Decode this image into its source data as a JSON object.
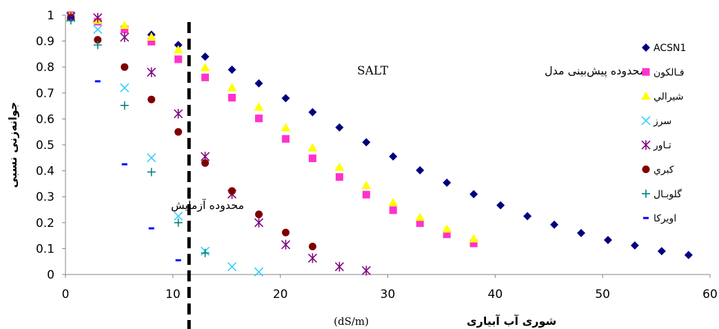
{
  "chart_data": {
    "type": "scatter",
    "title": "",
    "xlabel": "شوری آب آبیاری",
    "xunit": "(dS/m)",
    "ylabel": "جوانه‌زنی نسبی",
    "xlim": [
      0,
      60
    ],
    "ylim": [
      0,
      1
    ],
    "x_ticks": [
      0,
      10,
      20,
      30,
      40,
      50,
      60
    ],
    "y_ticks": [
      0,
      0.1,
      0.2,
      0.3,
      0.4,
      0.5,
      0.6,
      0.7,
      0.8,
      0.9,
      1
    ],
    "grid": false,
    "legend_position": "right",
    "divider_x": 11.5,
    "annotations": {
      "model_range": "محدوده پیش‌بینی مدل",
      "model_name": "SALT",
      "experiment_range": "محدوده آزمایش"
    },
    "series": [
      {
        "name": "ACSN1",
        "marker": "diamond",
        "color": "#000080",
        "x": [
          0.5,
          3,
          5.5,
          8,
          10.5,
          13,
          15.5,
          18,
          20.5,
          23,
          25.5,
          28,
          30.5,
          33,
          35.5,
          38,
          40.5,
          43,
          45.5,
          48,
          50.5,
          53,
          55.5,
          58
        ],
        "y": [
          0.99,
          0.98,
          0.955,
          0.925,
          0.885,
          0.84,
          0.79,
          0.737,
          0.68,
          0.626,
          0.567,
          0.51,
          0.455,
          0.402,
          0.354,
          0.31,
          0.267,
          0.225,
          0.192,
          0.16,
          0.133,
          0.112,
          0.09,
          0.075
        ]
      },
      {
        "name": "فـالکون",
        "marker": "square",
        "color": "#ff33cc",
        "x": [
          0.5,
          3,
          5.5,
          8,
          10.5,
          13,
          15.5,
          18,
          20.5,
          23,
          25.5,
          28,
          30.5,
          33,
          35.5,
          38
        ],
        "y": [
          1.0,
          0.975,
          0.945,
          0.898,
          0.83,
          0.76,
          0.682,
          0.602,
          0.523,
          0.448,
          0.376,
          0.308,
          0.248,
          0.198,
          0.155,
          0.12
        ]
      },
      {
        "name": "شيرالي",
        "marker": "triangle",
        "color": "#ffff00",
        "x": [
          0.5,
          3,
          5.5,
          8,
          10.5,
          13,
          15.5,
          18,
          20.5,
          23,
          25.5,
          28,
          30.5,
          33,
          35.5,
          38
        ],
        "y": [
          1.0,
          0.98,
          0.96,
          0.915,
          0.866,
          0.797,
          0.72,
          0.645,
          0.565,
          0.488,
          0.413,
          0.343,
          0.277,
          0.22,
          0.175,
          0.137
        ]
      },
      {
        "name": "سرز",
        "marker": "x",
        "color": "#33ccff",
        "x": [
          0.5,
          3,
          5.5,
          8,
          10.5,
          13,
          15.5,
          18
        ],
        "y": [
          0.99,
          0.945,
          0.72,
          0.45,
          0.225,
          0.09,
          0.03,
          0.01
        ]
      },
      {
        "name": "تـاور",
        "marker": "asterisk",
        "color": "#800080",
        "x": [
          0.5,
          3,
          5.5,
          8,
          10.5,
          13,
          15.5,
          18,
          20.5,
          23,
          25.5,
          28
        ],
        "y": [
          0.995,
          0.99,
          0.915,
          0.78,
          0.62,
          0.455,
          0.31,
          0.2,
          0.115,
          0.063,
          0.03,
          0.015
        ]
      },
      {
        "name": "كبري",
        "marker": "circle",
        "color": "#800000",
        "x": [
          0.5,
          3,
          5.5,
          8,
          10.5,
          13,
          15.5,
          18,
          20.5,
          23
        ],
        "y": [
          0.99,
          0.905,
          0.8,
          0.675,
          0.55,
          0.43,
          0.322,
          0.232,
          0.162,
          0.108
        ]
      },
      {
        "name": "گلوبـال",
        "marker": "plus",
        "color": "#008080",
        "x": [
          0.5,
          3,
          5.5,
          8,
          10.5,
          13
        ],
        "y": [
          0.98,
          0.885,
          0.652,
          0.395,
          0.2,
          0.083
        ]
      },
      {
        "name": "اويركا",
        "marker": "dash",
        "color": "#0000ff",
        "x": [
          0.5,
          3,
          5.5,
          8,
          10.5
        ],
        "y": [
          0.99,
          0.745,
          0.425,
          0.178,
          0.055
        ]
      }
    ]
  }
}
